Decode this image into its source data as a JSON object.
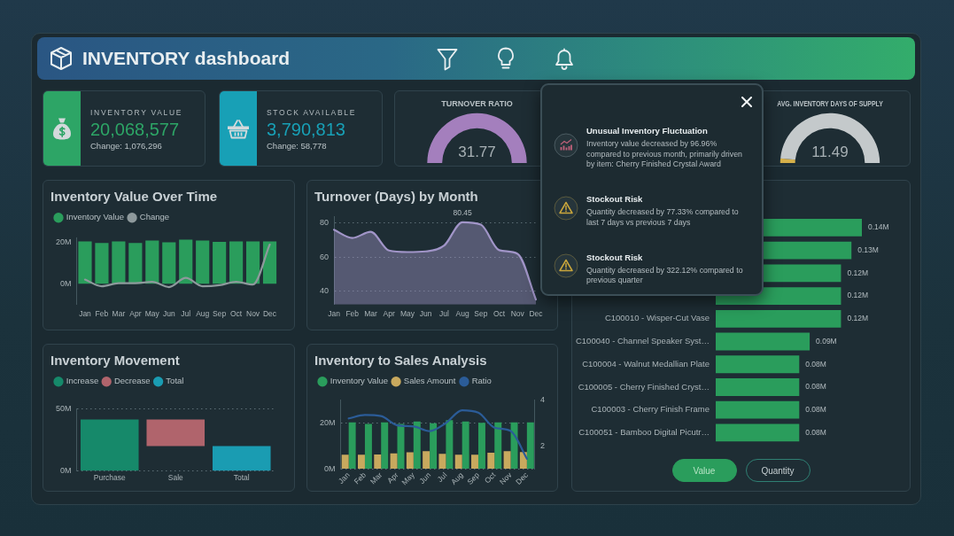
{
  "chart_data": [
    {
      "type": "other",
      "title": "INVENTORY dashboard"
    },
    {
      "type": "other",
      "title": "INVENTORY VALUE",
      "color": "#2da566",
      "annotations": [
        "20,068,577",
        "Change: 1,076,296"
      ]
    },
    {
      "type": "other",
      "title": "STOCK AVAILABLE",
      "color": "#18a0b6",
      "annotations": [
        "3,790,813",
        "Change: 58,778"
      ]
    },
    {
      "type": "pie",
      "title": "TURNOVER RATIO",
      "categories": [
        null
      ],
      "values": [
        100
      ],
      "colors": [
        "#a47fbd"
      ],
      "annotations": [
        "31.77"
      ]
    },
    {
      "type": "other",
      "annotations": [
        "Unusual Inventory Fluctuation",
        "Inventory value decreased by 96.96% compared to previous month, primarily driven by item: Cherry Finished Crystal Award",
        "Stockout Risk",
        "Quantity decreased by 77.33% compared to last 7 days vs previous 7 days",
        "Stockout Risk",
        "Quantity decreased by 322.12% compared to previous quarter"
      ]
    },
    {
      "type": "donut",
      "title": "AVG. INVENTORY DAYS OF SUPPLY",
      "categories": [
        null,
        null
      ],
      "values": [
        3,
        97
      ],
      "colors": [
        "#d6b04a",
        "#c4c9cb"
      ],
      "annotations": [
        "11.49"
      ]
    },
    {
      "type": "bar",
      "title": "Inventory Value Over Time",
      "categories": [
        "Jan",
        "Feb",
        "Mar",
        "Apr",
        "May",
        "Jun",
        "Jul",
        "Aug",
        "Sep",
        "Oct",
        "Nov",
        "Dec"
      ],
      "series": [
        {
          "name": "Inventory Value",
          "color": "#2a9d5c",
          "values": [
            20.3,
            19.6,
            20.3,
            19.6,
            20.7,
            19.9,
            21.2,
            20.7,
            20.1,
            20.3,
            20.3,
            20.3
          ]
        },
        {
          "name": "Change",
          "type": "line",
          "color": "#8e999c",
          "values": [
            2.0,
            -1.2,
            0.3,
            0.3,
            0.9,
            -1.6,
            2.8,
            -1.2,
            -0.7,
            0.9,
            -0.4,
            18.8
          ]
        }
      ],
      "ylim": [
        -10,
        22
      ],
      "yticks": [
        {
          "value": 0,
          "label": "0M"
        },
        {
          "value": 20,
          "label": "20M"
        }
      ],
      "legend": "top left"
    },
    {
      "type": "area",
      "title": "Turnover (Days) by Month",
      "categories": [
        "Jan",
        "Feb",
        "Mar",
        "Apr",
        "May",
        "Jun",
        "Jul",
        "Aug",
        "Sep",
        "Oct",
        "Nov",
        "Dec"
      ],
      "values": [
        76.0,
        71.2,
        74.8,
        63.8,
        62.9,
        63.3,
        66.7,
        80.45,
        79.0,
        64.0,
        61.9,
        35.0
      ],
      "color": "#a195c8",
      "value_labels": [
        null,
        null,
        null,
        null,
        null,
        null,
        null,
        "80.45",
        null,
        null,
        null,
        null
      ],
      "ylim": [
        32,
        84
      ],
      "yticks": [
        40,
        60,
        80
      ],
      "grid": "y"
    },
    {
      "type": "bar",
      "orientation": "horizontal",
      "categories": [
        null,
        null,
        null,
        null,
        "C100010 - Wisper-Cut Vase",
        "C100040 - Channel Speaker Syst…",
        "C100004 - Walnut Medallian Plate",
        "C100005 - Cherry Finished Cryst…",
        "C100003 - Cherry Finish Frame",
        "C100051 - Bamboo Digital Picutr…"
      ],
      "values": [
        0.14,
        0.13,
        0.12,
        0.12,
        0.12,
        0.09,
        0.08,
        0.08,
        0.08,
        0.08
      ],
      "color": "#2a9d5c",
      "value_labels": [
        "0.14M",
        "0.13M",
        "0.12M",
        "0.12M",
        "0.12M",
        "0.09M",
        "0.08M",
        "0.08M",
        "0.08M",
        "0.08M"
      ],
      "tick_labels": "y",
      "annotations": [
        "Value",
        "Quantity"
      ]
    },
    {
      "type": "bar",
      "title": "Inventory Movement",
      "categories": [
        "Purchase",
        "Sale",
        "Total"
      ],
      "series": [
        {
          "name": "Increase",
          "color": "#16896a",
          "values": [
            41.5,
            null,
            null
          ]
        },
        {
          "name": "Decrease",
          "color": "#b0646c",
          "values": [
            null,
            -21.4,
            null
          ],
          "base": [
            null,
            41.5,
            null
          ]
        },
        {
          "name": "Total",
          "color": "#1a9cb2",
          "values": [
            null,
            null,
            20.1
          ]
        }
      ],
      "ylim": [
        0,
        50
      ],
      "yticks": [
        {
          "value": 0,
          "label": "0M"
        },
        {
          "value": 50,
          "label": "50M"
        }
      ],
      "grid": "y",
      "legend": "top left"
    },
    {
      "type": "bar",
      "title": "Inventory to Sales Analysis",
      "categories": [
        "Jan",
        "Feb",
        "Mar",
        "Apr",
        "May",
        "Jun",
        "Jul",
        "Aug",
        "Sep",
        "Oct",
        "Nov",
        "Dec"
      ],
      "series": [
        {
          "name": "Inventory Value",
          "color": "#2a9d5c",
          "values": [
            20.3,
            19.6,
            20.3,
            19.6,
            20.7,
            19.9,
            21.2,
            20.7,
            20.1,
            20.3,
            20.3,
            20.3
          ]
        },
        {
          "name": "Sales Amount",
          "color": "#c8a95e",
          "values": [
            6.2,
            6.2,
            6.3,
            6.8,
            7.3,
            7.8,
            6.6,
            6.2,
            6.2,
            7.1,
            7.8,
            7.4
          ]
        },
        {
          "name": "Ratio",
          "type": "line",
          "axis": "y2",
          "color": "#2b5c98",
          "values": [
            3.2,
            3.35,
            3.3,
            2.9,
            2.85,
            2.65,
            3.0,
            3.55,
            3.45,
            2.8,
            2.65,
            1.45
          ]
        }
      ],
      "ylim": [
        0,
        30
      ],
      "yticks": [
        {
          "value": 0,
          "label": "0M"
        },
        {
          "value": 20,
          "label": "20M"
        }
      ],
      "y2lim": [
        1,
        4
      ],
      "y2ticks": [
        2,
        4
      ],
      "grid": "y",
      "legend": "top left"
    }
  ]
}
